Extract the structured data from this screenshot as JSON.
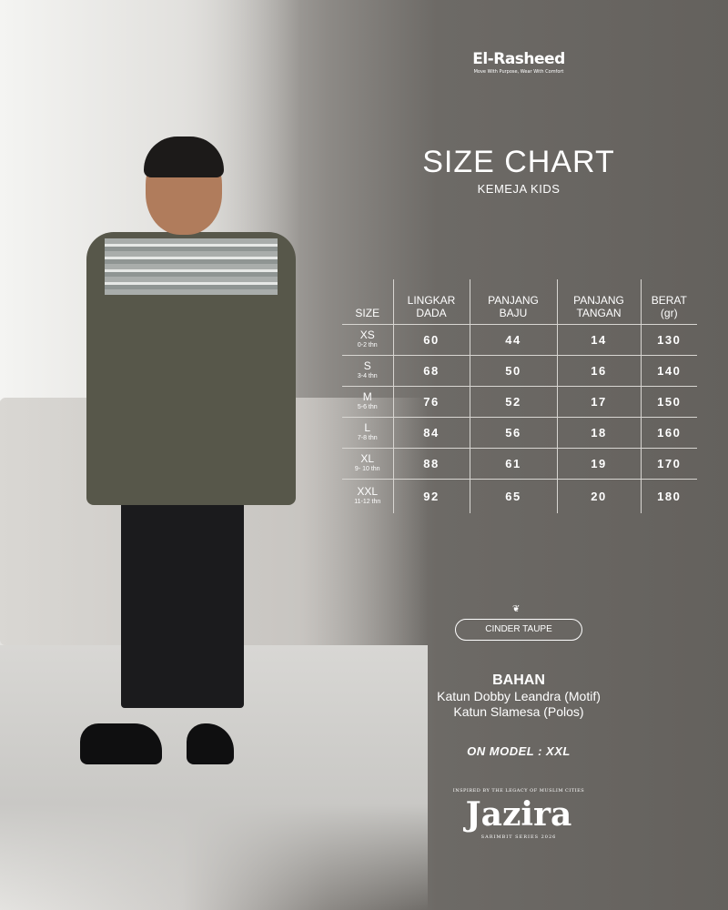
{
  "brand": {
    "name": "El-Rasheed",
    "tagline": "Move With Purpose, Wear With Comfort"
  },
  "title": "SIZE CHART",
  "subtitle": "KEMEJA KIDS",
  "table": {
    "headers": [
      [
        "SIZE",
        ""
      ],
      [
        "LINGKAR",
        "DADA"
      ],
      [
        "PANJANG",
        "BAJU"
      ],
      [
        "PANJANG",
        "TANGAN"
      ],
      [
        "BERAT",
        "(gr)"
      ]
    ],
    "rows": [
      {
        "size": "XS",
        "age": "0-2 thn",
        "values": [
          "60",
          "44",
          "14",
          "130"
        ]
      },
      {
        "size": "S",
        "age": "3-4 thn",
        "values": [
          "68",
          "50",
          "16",
          "140"
        ]
      },
      {
        "size": "M",
        "age": "5-6 thn",
        "values": [
          "76",
          "52",
          "17",
          "150"
        ]
      },
      {
        "size": "L",
        "age": "7-8 thn",
        "values": [
          "84",
          "56",
          "18",
          "160"
        ]
      },
      {
        "size": "XL",
        "age": "9- 10 thn",
        "values": [
          "88",
          "61",
          "19",
          "170"
        ]
      },
      {
        "size": "XXL",
        "age": "11-12 thn",
        "values": [
          "92",
          "65",
          "20",
          "180"
        ]
      }
    ]
  },
  "color_name": "CINDER TAUPE",
  "material": {
    "title": "BAHAN",
    "lines": [
      "Katun Dobby Leandra (Motif)",
      "Katun Slamesa (Polos)"
    ]
  },
  "on_model": "ON MODEL : XXL",
  "collection": {
    "top": "INSPIRED BY THE LEGACY OF MUSLIM CITIES",
    "name": "Jazira",
    "series": "SARIMBIT SERIES 2026"
  }
}
